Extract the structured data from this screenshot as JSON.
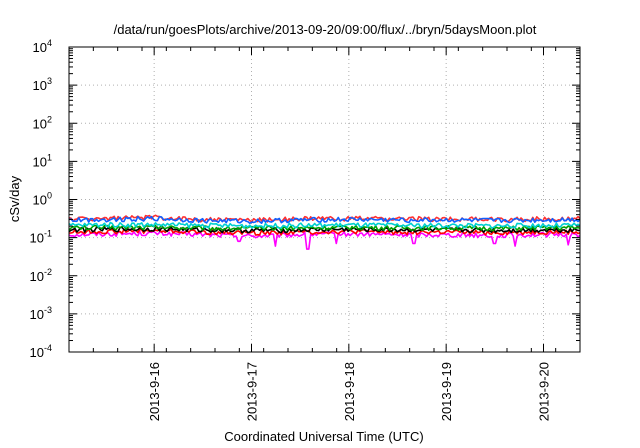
{
  "chart_data": {
    "type": "line",
    "title": "/data/run/goesPlots/archive/2013-09-20/09:00/flux/../bryn/5daysMoon.plot",
    "xlabel": "Coordinated Universal Time (UTC)",
    "ylabel": "cSv/day",
    "yscale": "log",
    "ylim": [
      0.0001,
      10000
    ],
    "xlim": [
      "2013-09-15T03:00",
      "2013-09-20T09:00"
    ],
    "grid": true,
    "y_ticks": [
      {
        "base": "10",
        "exp": "4",
        "value": 10000
      },
      {
        "base": "10",
        "exp": "3",
        "value": 1000
      },
      {
        "base": "10",
        "exp": "2",
        "value": 100
      },
      {
        "base": "10",
        "exp": "1",
        "value": 10
      },
      {
        "base": "10",
        "exp": "0",
        "value": 1
      },
      {
        "base": "10",
        "exp": "-1",
        "value": 0.1
      },
      {
        "base": "10",
        "exp": "-2",
        "value": 0.01
      },
      {
        "base": "10",
        "exp": "-3",
        "value": 0.001
      },
      {
        "base": "10",
        "exp": "-4",
        "value": 0.0001
      }
    ],
    "x_ticks": [
      "2013-9-16",
      "2013-9-17",
      "2013-9-18",
      "2013-9-19",
      "2013-9-20"
    ],
    "x_ticks_datetime": [
      "2013-09-16T00:00",
      "2013-09-17T00:00",
      "2013-09-18T00:00",
      "2013-09-19T00:00",
      "2013-09-20T00:00"
    ],
    "x": [
      "2013-09-15T03:00",
      "2013-09-15T12:00",
      "2013-09-16T00:00",
      "2013-09-16T12:00",
      "2013-09-17T00:00",
      "2013-09-17T12:00",
      "2013-09-18T00:00",
      "2013-09-18T12:00",
      "2013-09-19T00:00",
      "2013-09-19T12:00",
      "2013-09-20T00:00",
      "2013-09-20T09:00"
    ],
    "series": [
      {
        "color": "#ff00ff",
        "values": [
          0.12,
          0.125,
          0.13,
          0.12,
          0.11,
          0.12,
          0.125,
          0.12,
          0.12,
          0.115,
          0.12,
          0.12
        ],
        "dips": [
          [
            "2013-09-16T21:00",
            0.08
          ],
          [
            "2013-09-17T06:00",
            0.06
          ],
          [
            "2013-09-17T14:00",
            0.05
          ],
          [
            "2013-09-17T21:00",
            0.07
          ],
          [
            "2013-09-18T16:00",
            0.07
          ],
          [
            "2013-09-19T12:00",
            0.07
          ],
          [
            "2013-09-19T17:00",
            0.06
          ],
          [
            "2013-09-20T06:00",
            0.065
          ]
        ]
      },
      {
        "color": "#ff0000",
        "values": [
          0.14,
          0.145,
          0.15,
          0.14,
          0.135,
          0.14,
          0.145,
          0.14,
          0.14,
          0.135,
          0.14,
          0.14
        ]
      },
      {
        "color": "#000000",
        "values": [
          0.16,
          0.165,
          0.17,
          0.16,
          0.155,
          0.16,
          0.165,
          0.16,
          0.16,
          0.155,
          0.16,
          0.16
        ]
      },
      {
        "color": "#00a000",
        "values": [
          0.18,
          0.185,
          0.19,
          0.18,
          0.175,
          0.18,
          0.185,
          0.18,
          0.18,
          0.175,
          0.18,
          0.18
        ]
      },
      {
        "color": "#00d0d0",
        "values": [
          0.21,
          0.22,
          0.22,
          0.21,
          0.205,
          0.21,
          0.215,
          0.21,
          0.21,
          0.205,
          0.21,
          0.21
        ]
      },
      {
        "color": "#ff3030",
        "values": [
          0.31,
          0.32,
          0.34,
          0.3,
          0.29,
          0.31,
          0.32,
          0.31,
          0.31,
          0.3,
          0.31,
          0.32
        ]
      },
      {
        "color": "#1060ff",
        "values": [
          0.29,
          0.3,
          0.32,
          0.28,
          0.27,
          0.29,
          0.3,
          0.29,
          0.29,
          0.28,
          0.29,
          0.3
        ]
      }
    ]
  }
}
